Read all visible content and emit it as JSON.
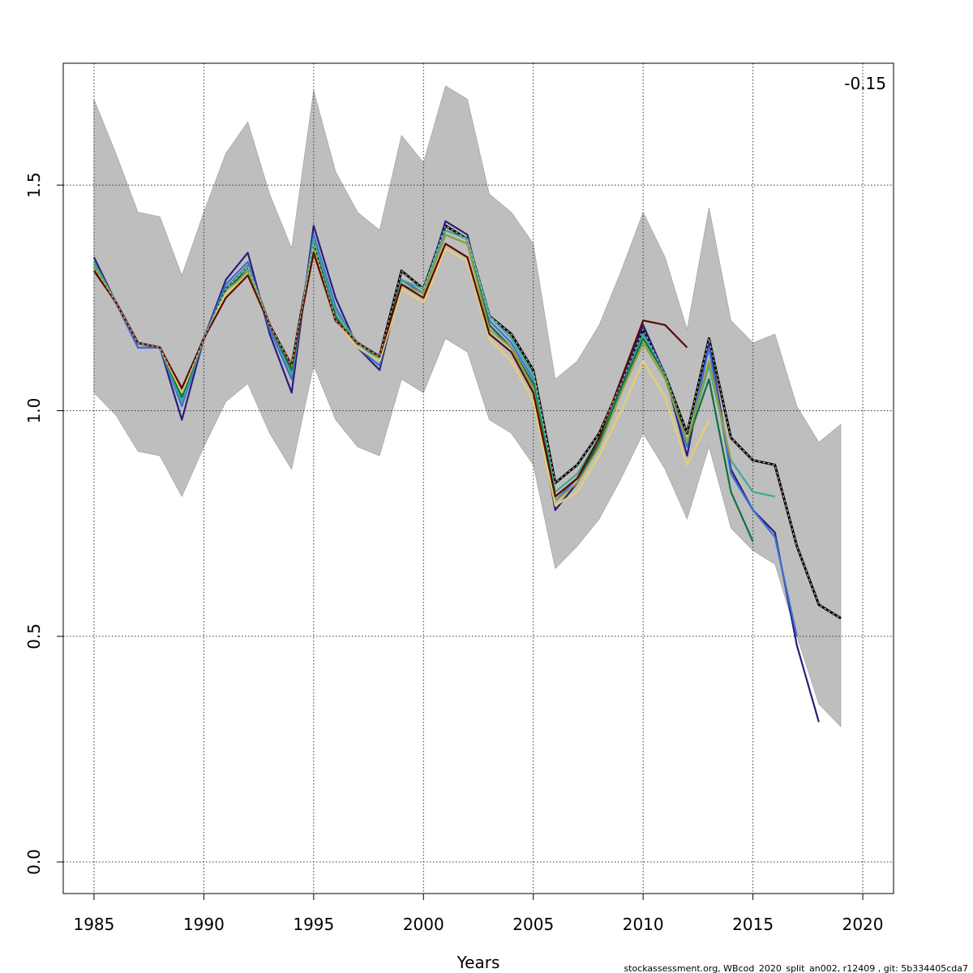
{
  "chart_data": {
    "type": "line",
    "xlabel": "Years",
    "ylabel": "",
    "annotation": "-0.15",
    "footer": "stockassessment.org, WBcod_2020_split_an002, r12409 , git: 5b334405cda7",
    "xlim": [
      1983.6,
      2021.4
    ],
    "ylim": [
      -0.07,
      1.77
    ],
    "x_ticks": [
      1985,
      1990,
      1995,
      2000,
      2005,
      2010,
      2015,
      2020
    ],
    "y_ticks": [
      0.0,
      0.5,
      1.0,
      1.5
    ],
    "x_tick_labels": [
      "1985",
      "1990",
      "1995",
      "2000",
      "2005",
      "2010",
      "2015",
      "2020"
    ],
    "y_tick_labels": [
      "0.0",
      "0.5",
      "1.0",
      "1.5"
    ],
    "grid": true,
    "band": {
      "x": [
        1985,
        1986,
        1987,
        1988,
        1989,
        1990,
        1991,
        1992,
        1993,
        1994,
        1995,
        1996,
        1997,
        1998,
        1999,
        2000,
        2001,
        2002,
        2003,
        2004,
        2005,
        2006,
        2007,
        2008,
        2009,
        2010,
        2011,
        2012,
        2013,
        2014,
        2015,
        2016,
        2017,
        2018,
        2019
      ],
      "upper": [
        1.69,
        1.57,
        1.44,
        1.43,
        1.3,
        1.44,
        1.57,
        1.64,
        1.48,
        1.36,
        1.71,
        1.53,
        1.44,
        1.4,
        1.61,
        1.55,
        1.72,
        1.69,
        1.48,
        1.44,
        1.37,
        1.07,
        1.11,
        1.19,
        1.31,
        1.44,
        1.34,
        1.18,
        1.45,
        1.2,
        1.15,
        1.17,
        1.01,
        0.93,
        0.97
      ],
      "lower": [
        1.04,
        0.99,
        0.91,
        0.9,
        0.81,
        0.92,
        1.02,
        1.06,
        0.95,
        0.87,
        1.1,
        0.98,
        0.92,
        0.9,
        1.07,
        1.04,
        1.16,
        1.13,
        0.98,
        0.95,
        0.88,
        0.65,
        0.7,
        0.76,
        0.85,
        0.95,
        0.87,
        0.76,
        0.92,
        0.74,
        0.69,
        0.66,
        0.5,
        0.35,
        0.3
      ],
      "color": "#bebebe"
    },
    "base_series": {
      "x": [
        1985,
        1986,
        1987,
        1988,
        1989,
        1990,
        1991,
        1992,
        1993,
        1994,
        1995,
        1996,
        1997,
        1998,
        1999,
        2000,
        2001,
        2002,
        2003,
        2004,
        2005,
        2006,
        2007,
        2008,
        2009,
        2010,
        2011,
        2012,
        2013,
        2014,
        2015,
        2016,
        2017,
        2018,
        2019
      ],
      "y": [
        1.32,
        1.24,
        1.15,
        1.14,
        1.04,
        1.16,
        1.27,
        1.32,
        1.19,
        1.1,
        1.37,
        1.2,
        1.15,
        1.12,
        1.31,
        1.27,
        1.41,
        1.38,
        1.21,
        1.17,
        1.09,
        0.84,
        0.88,
        0.95,
        1.06,
        1.18,
        1.08,
        0.95,
        1.16,
        0.94,
        0.89,
        0.88,
        0.7,
        0.57,
        0.54
      ],
      "color": "#000000"
    },
    "series": [
      {
        "x": [
          1985,
          1986,
          1987,
          1988,
          1989,
          1990,
          1991,
          1992,
          1993,
          1994,
          1995,
          1996,
          1997,
          1998,
          1999,
          2000,
          2001,
          2002,
          2003,
          2004,
          2005,
          2006,
          2007,
          2008,
          2009,
          2010,
          2011,
          2012,
          2013,
          2014,
          2015,
          2016,
          2017,
          2018
        ],
        "y": [
          1.34,
          1.24,
          1.14,
          1.14,
          0.98,
          1.16,
          1.29,
          1.35,
          1.17,
          1.04,
          1.41,
          1.25,
          1.14,
          1.09,
          1.29,
          1.26,
          1.42,
          1.39,
          1.19,
          1.14,
          1.05,
          0.78,
          0.84,
          0.93,
          1.06,
          1.19,
          1.08,
          0.9,
          1.15,
          0.87,
          0.78,
          0.73,
          0.48,
          0.31
        ],
        "color": "#2a1d7a"
      },
      {
        "x": [
          1985,
          1986,
          1987,
          1988,
          1989,
          1990,
          1991,
          1992,
          1993,
          1994,
          1995,
          1996,
          1997,
          1998,
          1999,
          2000,
          2001,
          2002,
          2003,
          2004,
          2005,
          2006,
          2007,
          2008,
          2009,
          2010,
          2011,
          2012,
          2013,
          2014,
          2015,
          2016,
          2017
        ],
        "y": [
          1.33,
          1.24,
          1.14,
          1.14,
          1.01,
          1.16,
          1.28,
          1.33,
          1.18,
          1.07,
          1.39,
          1.23,
          1.14,
          1.1,
          1.29,
          1.26,
          1.4,
          1.38,
          1.2,
          1.15,
          1.07,
          0.8,
          0.85,
          0.93,
          1.05,
          1.17,
          1.08,
          0.92,
          1.14,
          0.86,
          0.78,
          0.72,
          0.5
        ],
        "color": "#3b6fd6"
      },
      {
        "x": [
          1985,
          1986,
          1987,
          1988,
          1989,
          1990,
          1991,
          1992,
          1993,
          1994,
          1995,
          1996,
          1997,
          1998,
          1999,
          2000,
          2001,
          2002,
          2003,
          2004,
          2005,
          2006,
          2007,
          2008,
          2009,
          2010,
          2011,
          2012,
          2013,
          2014,
          2015,
          2016
        ],
        "y": [
          1.33,
          1.24,
          1.15,
          1.14,
          1.02,
          1.16,
          1.27,
          1.32,
          1.19,
          1.08,
          1.38,
          1.22,
          1.15,
          1.11,
          1.29,
          1.27,
          1.4,
          1.38,
          1.21,
          1.16,
          1.08,
          0.82,
          0.86,
          0.94,
          1.05,
          1.17,
          1.08,
          0.93,
          1.1,
          0.89,
          0.82,
          0.81
        ],
        "color": "#3aaa94"
      },
      {
        "x": [
          1985,
          1986,
          1987,
          1988,
          1989,
          1990,
          1991,
          1992,
          1993,
          1994,
          1995,
          1996,
          1997,
          1998,
          1999,
          2000,
          2001,
          2002,
          2003,
          2004,
          2005,
          2006,
          2007,
          2008,
          2009,
          2010,
          2011,
          2012,
          2013,
          2014,
          2015
        ],
        "y": [
          1.32,
          1.24,
          1.15,
          1.14,
          1.03,
          1.16,
          1.27,
          1.31,
          1.19,
          1.09,
          1.36,
          1.21,
          1.14,
          1.11,
          1.28,
          1.26,
          1.39,
          1.37,
          1.19,
          1.14,
          1.06,
          0.81,
          0.85,
          0.93,
          1.05,
          1.16,
          1.08,
          0.93,
          1.07,
          0.82,
          0.71
        ],
        "color": "#0e7040"
      },
      {
        "x": [
          1985,
          1986,
          1987,
          1988,
          1989,
          1990,
          1991,
          1992,
          1993,
          1994,
          1995,
          1996,
          1997,
          1998,
          1999,
          2000,
          2001,
          2002,
          2003,
          2004,
          2005,
          2006,
          2007,
          2008,
          2009,
          2010,
          2011,
          2012,
          2013,
          2014
        ],
        "y": [
          1.32,
          1.24,
          1.15,
          1.14,
          1.04,
          1.16,
          1.26,
          1.31,
          1.19,
          1.1,
          1.36,
          1.2,
          1.15,
          1.12,
          1.28,
          1.26,
          1.39,
          1.37,
          1.18,
          1.14,
          1.05,
          0.8,
          0.84,
          0.92,
          1.04,
          1.15,
          1.07,
          0.93,
          1.11,
          0.89
        ],
        "color": "#8fa03a"
      },
      {
        "x": [
          1985,
          1986,
          1987,
          1988,
          1989,
          1990,
          1991,
          1992,
          1993,
          1994,
          1995,
          1996,
          1997,
          1998,
          1999,
          2000,
          2001,
          2002,
          2003,
          2004,
          2005,
          2006,
          2007,
          2008,
          2009,
          2010,
          2011,
          2012,
          2013
        ],
        "y": [
          1.31,
          1.24,
          1.15,
          1.14,
          1.04,
          1.16,
          1.26,
          1.3,
          1.19,
          1.1,
          1.35,
          1.2,
          1.14,
          1.11,
          1.27,
          1.24,
          1.36,
          1.33,
          1.16,
          1.11,
          1.02,
          0.79,
          0.82,
          0.9,
          1.0,
          1.11,
          1.03,
          0.88,
          0.98
        ],
        "color": "#e6cf72"
      },
      {
        "x": [
          1985,
          1986,
          1987,
          1988,
          1989,
          1990,
          1991,
          1992,
          1993,
          1994,
          1995,
          1996,
          1997,
          1998,
          1999,
          2000,
          2001,
          2002,
          2003,
          2004,
          2005,
          2006,
          2007,
          2008,
          2009,
          2010,
          2011,
          2012
        ],
        "y": [
          1.31,
          1.24,
          1.15,
          1.14,
          1.05,
          1.16,
          1.25,
          1.3,
          1.19,
          1.1,
          1.35,
          1.2,
          1.15,
          1.12,
          1.28,
          1.25,
          1.37,
          1.34,
          1.17,
          1.13,
          1.04,
          0.81,
          0.85,
          0.94,
          1.07,
          1.2,
          1.19,
          1.14
        ],
        "color": "#5a0a00"
      }
    ]
  }
}
